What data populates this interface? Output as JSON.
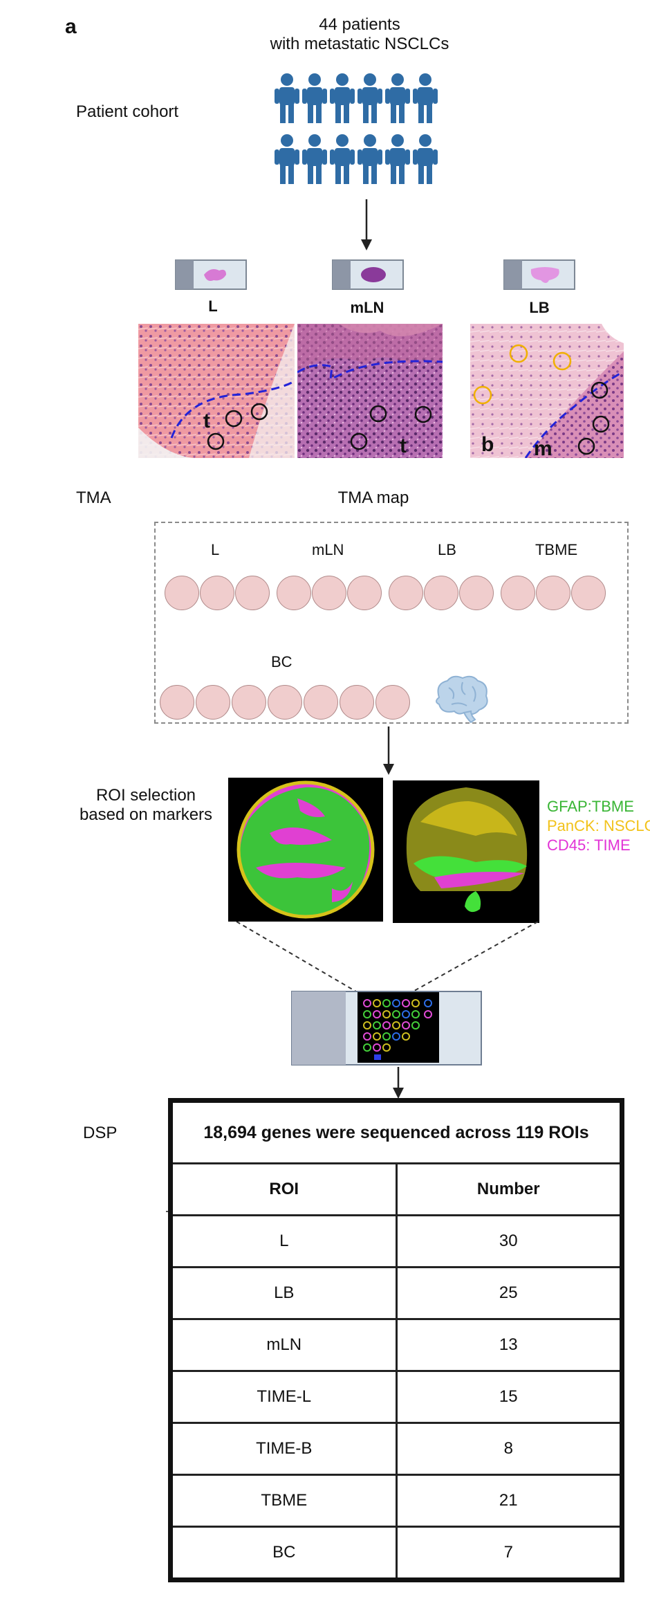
{
  "panel_label": "a",
  "cohort": {
    "side_label": "Patient cohort",
    "title_line1": "44 patients",
    "title_line2": "with metastatic NSCLCs"
  },
  "histology": {
    "tiles": [
      {
        "label": "L",
        "annotations": [
          "t"
        ]
      },
      {
        "label": "mLN",
        "annotations": [
          "t"
        ]
      },
      {
        "label": "LB",
        "annotations": [
          "b",
          "m"
        ]
      }
    ]
  },
  "tma": {
    "side_label": "TMA",
    "title": "TMA map",
    "groups": [
      "L",
      "mLN",
      "LB",
      "TBME"
    ],
    "bottom_group": "BC",
    "brain_icon": "brain-icon"
  },
  "roi": {
    "side_label_line1": "ROI selection",
    "side_label_line2": "based on markers",
    "legend": [
      {
        "text": "GFAP:TBME",
        "color": "#39b534"
      },
      {
        "text": "PanCK: NSCLC",
        "color": "#f2c21a"
      },
      {
        "text": "CD45: TIME",
        "color": "#e233d6"
      }
    ]
  },
  "dsp": {
    "side_label": "DSP",
    "title": "18,694 genes were sequenced across 119 ROIs",
    "headers": [
      "ROI",
      "Number"
    ],
    "rows": [
      {
        "roi": "L",
        "number": "30"
      },
      {
        "roi": "LB",
        "number": "25"
      },
      {
        "roi": "mLN",
        "number": "13"
      },
      {
        "roi": "TIME-L",
        "number": "15"
      },
      {
        "roi": "TIME-B",
        "number": "8"
      },
      {
        "roi": "TBME",
        "number": "21"
      },
      {
        "roi": "BC",
        "number": "7"
      }
    ]
  }
}
